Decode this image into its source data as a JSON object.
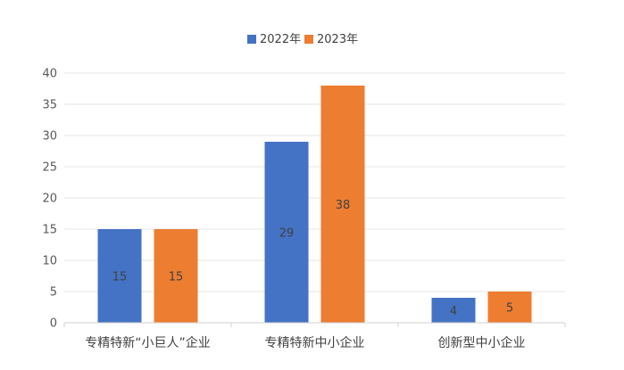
{
  "chart_data": {
    "type": "bar",
    "categories": [
      "专精特新“小巨人”企业",
      "专精特新中小企业",
      "创新型中小企业"
    ],
    "series": [
      {
        "name": "2022年",
        "values": [
          15,
          29,
          4
        ],
        "color": "#4472C4"
      },
      {
        "name": "2023年",
        "values": [
          15,
          38,
          5
        ],
        "color": "#ED7D31"
      }
    ],
    "ylim": [
      0,
      40
    ],
    "yticks": [
      0,
      5,
      10,
      15,
      20,
      25,
      30,
      35,
      40
    ],
    "grid": true,
    "legend": "top-center",
    "data_labels": true
  }
}
